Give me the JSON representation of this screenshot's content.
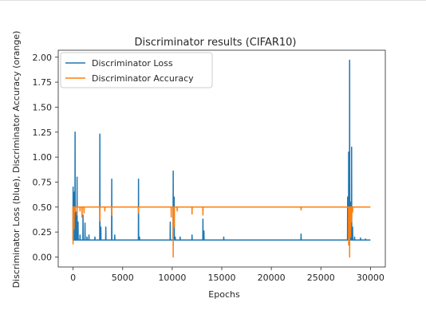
{
  "chart_data": {
    "type": "line",
    "title": "Discriminator results (CIFAR10)",
    "xlabel": "Epochs",
    "ylabel": "Discriminator Loss (blue), Discriminator Accuracy (orange)",
    "xlim": [
      -1500,
      31500
    ],
    "ylim": [
      -0.1,
      2.07
    ],
    "xticks": [
      0,
      5000,
      10000,
      15000,
      20000,
      25000,
      30000
    ],
    "xtick_labels": [
      "0",
      "5000",
      "10000",
      "15000",
      "20000",
      "25000",
      "30000"
    ],
    "yticks": [
      0.0,
      0.25,
      0.5,
      0.75,
      1.0,
      1.25,
      1.5,
      1.75,
      2.0
    ],
    "ytick_labels": [
      "0.00",
      "0.25",
      "0.50",
      "0.75",
      "1.00",
      "1.25",
      "1.50",
      "1.75",
      "2.00"
    ],
    "grid": false,
    "legend_position": "upper-left",
    "series": [
      {
        "name": "Discriminator Loss",
        "color": "#1f77b4",
        "baseline": 0.17,
        "x_max": 30000,
        "spikes": [
          [
            0,
            0.7
          ],
          [
            50,
            0.22
          ],
          [
            120,
            0.65
          ],
          [
            200,
            1.25
          ],
          [
            300,
            0.45
          ],
          [
            400,
            0.8
          ],
          [
            500,
            0.35
          ],
          [
            700,
            0.22
          ],
          [
            1000,
            0.42
          ],
          [
            1200,
            0.34
          ],
          [
            1400,
            0.2
          ],
          [
            1600,
            0.22
          ],
          [
            2200,
            0.2
          ],
          [
            2700,
            1.23
          ],
          [
            2800,
            0.3
          ],
          [
            3300,
            0.3
          ],
          [
            3900,
            0.78
          ],
          [
            4200,
            0.22
          ],
          [
            6600,
            0.78
          ],
          [
            6700,
            0.2
          ],
          [
            9800,
            0.35
          ],
          [
            10100,
            0.86
          ],
          [
            10200,
            0.6
          ],
          [
            10300,
            0.2
          ],
          [
            10800,
            0.2
          ],
          [
            12000,
            0.22
          ],
          [
            13100,
            0.38
          ],
          [
            13200,
            0.26
          ],
          [
            15200,
            0.2
          ],
          [
            23000,
            0.23
          ],
          [
            27700,
            0.6
          ],
          [
            27800,
            1.05
          ],
          [
            27900,
            1.97
          ],
          [
            28000,
            0.55
          ],
          [
            28100,
            1.1
          ],
          [
            28200,
            0.3
          ],
          [
            28400,
            0.2
          ],
          [
            29000,
            0.19
          ],
          [
            29500,
            0.18
          ]
        ]
      },
      {
        "name": "Discriminator Accuracy",
        "color": "#ff7f0e",
        "baseline": 0.5,
        "x_max": 30000,
        "spikes": [
          [
            0,
            0.13
          ],
          [
            100,
            0.28
          ],
          [
            200,
            0.45
          ],
          [
            400,
            0.42
          ],
          [
            700,
            0.46
          ],
          [
            900,
            0.4
          ],
          [
            1100,
            0.44
          ],
          [
            2700,
            0.36
          ],
          [
            3200,
            0.46
          ],
          [
            3900,
            0.42
          ],
          [
            6600,
            0.44
          ],
          [
            9900,
            0.4
          ],
          [
            10100,
            0.0
          ],
          [
            10200,
            0.3
          ],
          [
            10500,
            0.46
          ],
          [
            12000,
            0.43
          ],
          [
            13100,
            0.42
          ],
          [
            23000,
            0.47
          ],
          [
            27800,
            0.12
          ],
          [
            27900,
            0.0
          ],
          [
            28000,
            0.2
          ],
          [
            28100,
            0.35
          ],
          [
            28200,
            0.45
          ]
        ]
      }
    ]
  }
}
